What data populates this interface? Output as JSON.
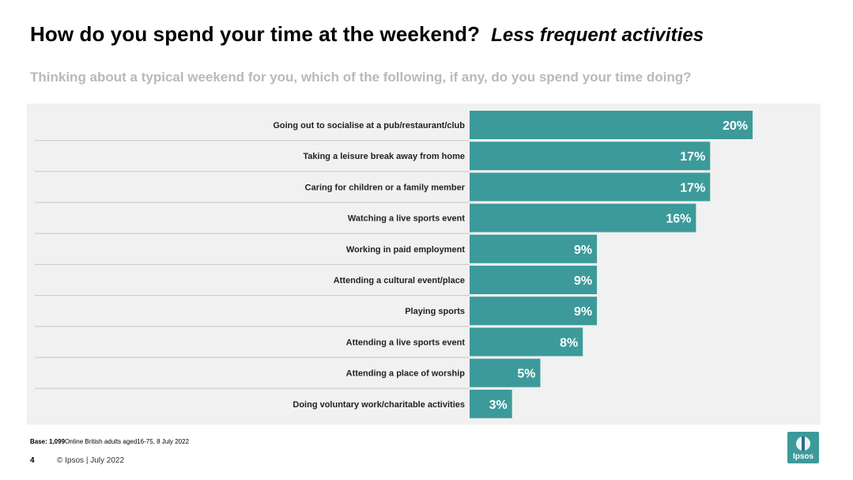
{
  "header": {
    "title": "How do you spend your time at the weekend?",
    "subtitle": "Less frequent activities",
    "question": "Thinking about a typical weekend for you, which of the following, if any, do you spend your time doing?"
  },
  "footer": {
    "base_label": "Base: 1,099",
    "base_text": "Online British adults aged16-75, 8 July 2022",
    "page_number": "4",
    "copyright": "© Ipsos | July 2022",
    "logo_text": "Ipsos"
  },
  "colors": {
    "bar": "#3d9a9a",
    "panel": "#f1f1f1",
    "separator": "#c8c8c8",
    "question_text": "#b9b9b9"
  },
  "chart_data": {
    "type": "bar",
    "orientation": "horizontal",
    "categories": [
      "Going out to socialise at a pub/restaurant/club",
      "Taking a leisure break away from home",
      "Caring for children or a family member",
      "Watching a live sports event",
      "Working in paid employment",
      "Attending a cultural event/place",
      "Playing sports",
      "Attending a live sports event",
      "Attending a place of worship",
      "Doing voluntary work/charitable activities"
    ],
    "values": [
      20,
      17,
      17,
      16,
      9,
      9,
      9,
      8,
      5,
      3
    ],
    "value_labels": [
      "20%",
      "17%",
      "17%",
      "16%",
      "9%",
      "9%",
      "9%",
      "8%",
      "5%",
      "3%"
    ],
    "unit": "%",
    "xlim": [
      0,
      20
    ],
    "grid": false,
    "legend": "none"
  }
}
